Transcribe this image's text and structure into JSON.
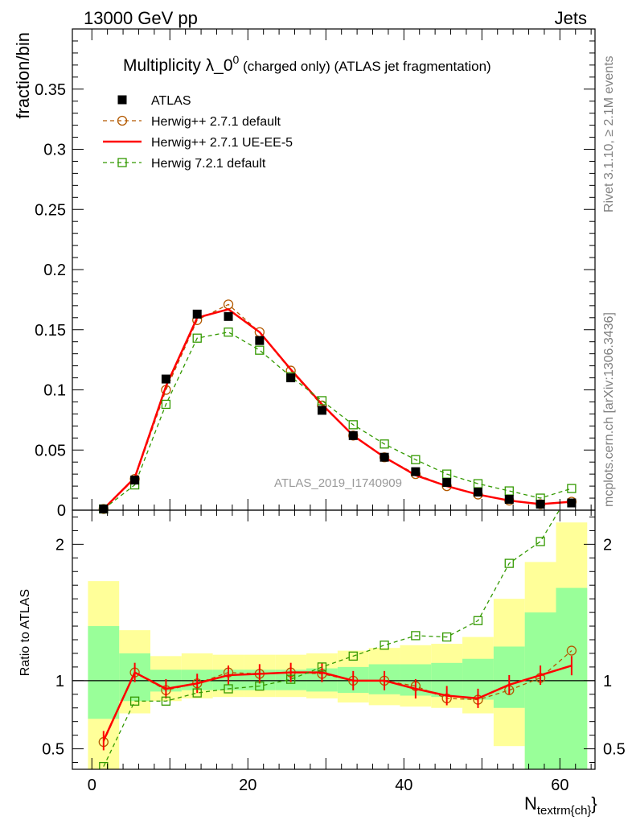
{
  "header": {
    "left": "13000 GeV pp",
    "right": "Jets"
  },
  "plot_title": {
    "main": "Multiplicity λ_0",
    "sup": "0",
    "sub": " (charged only) (ATLAS jet fragmentation)"
  },
  "side_labels": {
    "rivet": "Rivet 3.1.10, ≥ 2.1M events",
    "mcplots": "mcplots.cern.ch [arXiv:1306.3436]"
  },
  "analysis_label": "ATLAS_2019_I1740909",
  "colors": {
    "atlas": "#000000",
    "herwig_default": "#b35900",
    "herwig_ue": "#ff0000",
    "herwig72": "#339900",
    "band_inner": "#99ff99",
    "band_outer": "#ffff99"
  },
  "chart_data": [
    {
      "type": "scatter",
      "panel": "main",
      "ylabel": "fraction/bin",
      "xlim": [
        -2.5,
        64.5
      ],
      "ylim": [
        0,
        0.4
      ],
      "yticks": [
        "0",
        "0.05",
        "0.1",
        "0.15",
        "0.2",
        "0.25",
        "0.3",
        "0.35"
      ],
      "ytick_values": [
        0,
        0.05,
        0.1,
        0.15,
        0.2,
        0.25,
        0.3,
        0.35
      ],
      "legend": {
        "placement": "top-left"
      },
      "x": [
        1.5,
        5.5,
        9.5,
        13.5,
        17.5,
        21.5,
        25.5,
        29.5,
        33.5,
        37.5,
        41.5,
        45.5,
        49.5,
        53.5,
        57.5,
        61.5
      ],
      "series": [
        {
          "name": "ATLAS",
          "style": "marker-square",
          "values": [
            0.001,
            0.025,
            0.109,
            0.163,
            0.161,
            0.141,
            0.11,
            0.083,
            0.062,
            0.044,
            0.032,
            0.023,
            0.015,
            0.009,
            0.005,
            0.006
          ]
        },
        {
          "name": "Herwig++ 2.7.1 default",
          "style": "dashed-circle",
          "values": [
            0.001,
            0.026,
            0.1,
            0.158,
            0.171,
            0.148,
            0.116,
            0.087,
            0.062,
            0.044,
            0.03,
            0.02,
            0.013,
            0.008,
            0.005,
            0.007
          ]
        },
        {
          "name": "Herwig++ 2.7.1 UE-EE-5",
          "style": "solid",
          "values": [
            0.001,
            0.027,
            0.103,
            0.16,
            0.167,
            0.148,
            0.117,
            0.088,
            0.062,
            0.044,
            0.029,
            0.02,
            0.013,
            0.008,
            0.005,
            0.007
          ]
        },
        {
          "name": "Herwig 7.2.1 default",
          "style": "dashed-square",
          "values": [
            0.001,
            0.021,
            0.088,
            0.143,
            0.148,
            0.133,
            0.111,
            0.091,
            0.071,
            0.055,
            0.042,
            0.03,
            0.022,
            0.016,
            0.01,
            0.018
          ]
        }
      ]
    },
    {
      "type": "line",
      "panel": "ratio",
      "ylabel": "Ratio to ATLAS",
      "xlabel": "N",
      "xlabel_sub": "textrm{ch}",
      "xlim": [
        -2.5,
        64.5
      ],
      "ylim": [
        0.35,
        2.25
      ],
      "yticks": [
        "0.5",
        "1",
        "2"
      ],
      "ytick_values": [
        0.5,
        1,
        2
      ],
      "xticks": [
        "0",
        "20",
        "40",
        "60"
      ],
      "xtick_values": [
        0,
        20,
        40,
        60
      ],
      "bin_edges": [
        -0.5,
        3.5,
        7.5,
        11.5,
        15.5,
        19.5,
        23.5,
        27.5,
        31.5,
        35.5,
        39.5,
        43.5,
        47.5,
        51.5,
        55.5,
        59.5,
        63.5
      ],
      "band_outer": [
        [
          0.35,
          1.73
        ],
        [
          0.76,
          1.37
        ],
        [
          0.85,
          1.18
        ],
        [
          0.87,
          1.2
        ],
        [
          0.88,
          1.19
        ],
        [
          0.88,
          1.19
        ],
        [
          0.88,
          1.19
        ],
        [
          0.87,
          1.2
        ],
        [
          0.84,
          1.22
        ],
        [
          0.82,
          1.24
        ],
        [
          0.81,
          1.26
        ],
        [
          0.8,
          1.27
        ],
        [
          0.76,
          1.32
        ],
        [
          0.52,
          1.6
        ],
        [
          0.35,
          1.87
        ],
        [
          0.35,
          2.16
        ]
      ],
      "band_inner": [
        [
          0.72,
          1.4
        ],
        [
          0.85,
          1.2
        ],
        [
          0.92,
          1.08
        ],
        [
          0.93,
          1.08
        ],
        [
          0.93,
          1.08
        ],
        [
          0.93,
          1.08
        ],
        [
          0.93,
          1.08
        ],
        [
          0.92,
          1.09
        ],
        [
          0.91,
          1.1
        ],
        [
          0.9,
          1.12
        ],
        [
          0.89,
          1.12
        ],
        [
          0.88,
          1.13
        ],
        [
          0.86,
          1.16
        ],
        [
          0.8,
          1.25
        ],
        [
          0.35,
          1.5
        ],
        [
          0.35,
          1.68
        ]
      ],
      "x": [
        1.5,
        5.5,
        9.5,
        13.5,
        17.5,
        21.5,
        25.5,
        29.5,
        33.5,
        37.5,
        41.5,
        45.5,
        49.5,
        53.5,
        57.5,
        61.5
      ],
      "series": [
        {
          "name": "Herwig++ 2.7.1 default",
          "style": "dashed-circle",
          "values": [
            0.55,
            1.06,
            0.93,
            0.98,
            1.06,
            1.05,
            1.06,
            1.05,
            1.0,
            1.0,
            0.96,
            0.87,
            0.86,
            0.93,
            1.02,
            1.22
          ]
        },
        {
          "name": "Herwig++ 2.7.1 UE-EE-5",
          "style": "solid",
          "values": [
            0.56,
            1.06,
            0.94,
            0.98,
            1.04,
            1.05,
            1.06,
            1.06,
            1.0,
            1.0,
            0.94,
            0.89,
            0.87,
            0.97,
            1.04,
            1.11
          ]
        },
        {
          "name": "Herwig 7.2.1 default",
          "style": "dashed-square",
          "values": [
            0.37,
            0.85,
            0.85,
            0.91,
            0.94,
            0.96,
            1.01,
            1.1,
            1.18,
            1.26,
            1.33,
            1.32,
            1.44,
            1.86,
            2.02,
            2.4
          ]
        }
      ]
    }
  ]
}
